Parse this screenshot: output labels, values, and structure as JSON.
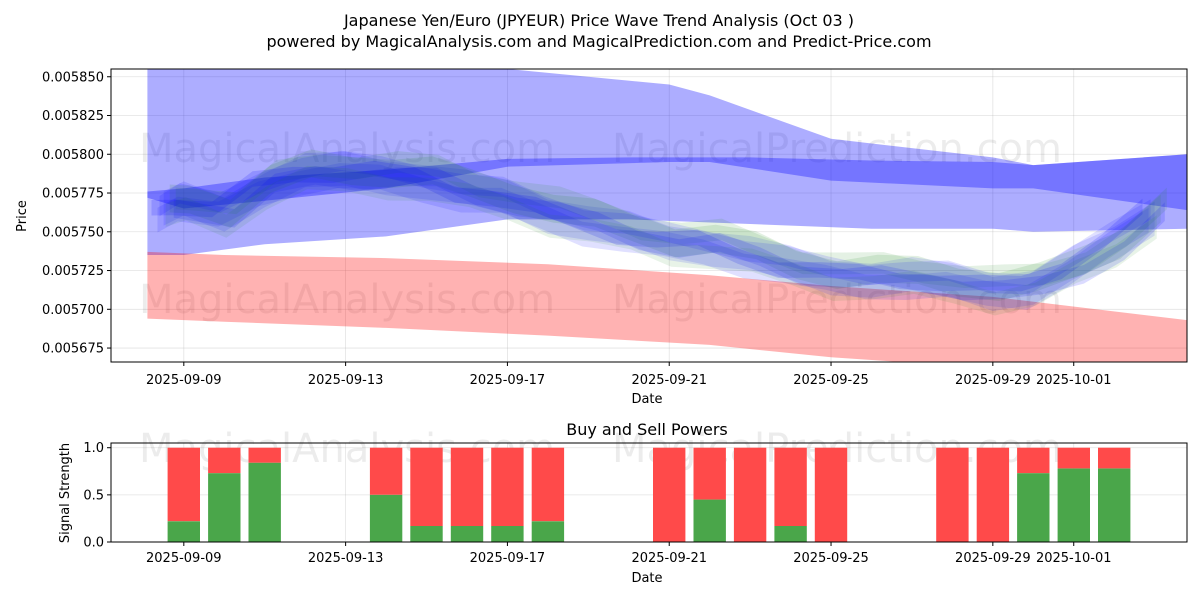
{
  "chart_data": [
    {
      "type": "area",
      "title": "Japanese Yen/Euro (JPYEUR) Price Wave Trend Analysis (Oct 03 )",
      "subtitle": "powered by MagicalAnalysis.com and MagicalPrediction.com and Predict-Price.com",
      "xlabel": "Date",
      "ylabel": "Price",
      "grid": true,
      "x_start": "2025-09-08",
      "x_range_days": [
        -0.8,
        25.8
      ],
      "ylim": [
        0.005666,
        0.005855
      ],
      "x_ticks": [
        {
          "label": "2025-09-09",
          "day": 1
        },
        {
          "label": "2025-09-13",
          "day": 5
        },
        {
          "label": "2025-09-17",
          "day": 9
        },
        {
          "label": "2025-09-21",
          "day": 13
        },
        {
          "label": "2025-09-25",
          "day": 17
        },
        {
          "label": "2025-09-29",
          "day": 21
        },
        {
          "label": "2025-10-01",
          "day": 23
        }
      ],
      "y_ticks": [
        {
          "label": "0.005675",
          "value": 0.005675
        },
        {
          "label": "0.005700",
          "value": 0.0057
        },
        {
          "label": "0.005725",
          "value": 0.005725
        },
        {
          "label": "0.005750",
          "value": 0.00575
        },
        {
          "label": "0.005775",
          "value": 0.005775
        },
        {
          "label": "0.005800",
          "value": 0.0058
        },
        {
          "label": "0.005825",
          "value": 0.005825
        },
        {
          "label": "0.005850",
          "value": 0.00585
        }
      ],
      "watermarks": [
        "MagicalAnalysis.com",
        "MagicalPrediction.com",
        "MagicalAnalysis.com",
        "MagicalPrediction.com"
      ],
      "bands": [
        {
          "name": "upper-blue-band",
          "color": "#0000ff",
          "opacity": 0.32,
          "x": [
            0.1,
            1.0,
            3.0,
            6.0,
            9.0,
            13.0,
            14.0,
            17.0,
            21.0,
            22.0,
            25.8
          ],
          "lower": [
            0.005772,
            0.005765,
            0.00577,
            0.005778,
            0.005792,
            0.005795,
            0.005795,
            0.005783,
            0.005778,
            0.005778,
            0.005764
          ],
          "upper": [
            0.005857,
            0.005857,
            0.005857,
            0.005857,
            0.005855,
            0.005845,
            0.005838,
            0.00581,
            0.005798,
            0.005793,
            0.0058
          ]
        },
        {
          "name": "mid-blue-band",
          "color": "#0000ff",
          "opacity": 0.32,
          "x": [
            0.1,
            1.0,
            3.0,
            6.0,
            9.0,
            12.0,
            15.0,
            18.0,
            21.0,
            22.0,
            25.8
          ],
          "lower": [
            0.005735,
            0.005735,
            0.005742,
            0.005747,
            0.005758,
            0.005758,
            0.005755,
            0.005752,
            0.005752,
            0.00575,
            0.005752
          ],
          "upper": [
            0.005776,
            0.005778,
            0.005785,
            0.00579,
            0.005797,
            0.005798,
            0.005798,
            0.005796,
            0.005795,
            0.005793,
            0.0058
          ]
        },
        {
          "name": "red-band",
          "color": "#ff0000",
          "opacity": 0.3,
          "x": [
            0.1,
            2.0,
            6.0,
            10.0,
            14.0,
            17.0,
            21.0,
            25.8
          ],
          "lower": [
            0.005694,
            0.005692,
            0.005688,
            0.005683,
            0.005677,
            0.005669,
            0.005662,
            0.00566
          ],
          "upper": [
            0.005737,
            0.005735,
            0.005733,
            0.005729,
            0.005722,
            0.005715,
            0.005708,
            0.005693
          ]
        }
      ],
      "wave_center": {
        "x": [
          0.5,
          1.0,
          2.0,
          3.0,
          4.0,
          5.0,
          6.0,
          7.0,
          8.0,
          9.0,
          10.0,
          11.0,
          12.0,
          13.0,
          14.0,
          15.0,
          16.0,
          17.0,
          18.0,
          19.0,
          20.0,
          21.0,
          22.0,
          23.0,
          24.0,
          25.0
        ],
        "y": [
          0.005765,
          0.005768,
          0.005762,
          0.00578,
          0.005788,
          0.005788,
          0.005787,
          0.005784,
          0.005776,
          0.005771,
          0.005763,
          0.005756,
          0.005749,
          0.005743,
          0.005742,
          0.005735,
          0.005727,
          0.005722,
          0.005721,
          0.00572,
          0.005717,
          0.005713,
          0.005715,
          0.005727,
          0.005742,
          0.005762
        ]
      },
      "wave_colors": [
        "#0000ff",
        "#228b22"
      ]
    },
    {
      "type": "bar",
      "title": "Buy and Sell Powers",
      "xlabel": "Date",
      "ylabel": "Signal Strength",
      "grid": true,
      "ylim": [
        0,
        1.05
      ],
      "x_range_days": [
        -0.8,
        25.8
      ],
      "y_ticks": [
        {
          "label": "0.0",
          "value": 0
        },
        {
          "label": "0.5",
          "value": 0.5
        },
        {
          "label": "1.0",
          "value": 1.0
        }
      ],
      "x_ticks": [
        {
          "label": "2025-09-09",
          "day": 1
        },
        {
          "label": "2025-09-13",
          "day": 5
        },
        {
          "label": "2025-09-17",
          "day": 9
        },
        {
          "label": "2025-09-21",
          "day": 13
        },
        {
          "label": "2025-09-25",
          "day": 17
        },
        {
          "label": "2025-09-29",
          "day": 21
        },
        {
          "label": "2025-10-01",
          "day": 23
        }
      ],
      "buy_color": "#4aa64a",
      "sell_color": "#ff4a4a",
      "days": [
        1,
        2,
        3,
        6,
        7,
        8,
        9,
        10,
        13,
        14,
        15,
        16,
        17,
        20,
        21,
        22,
        23,
        24
      ],
      "buy": [
        0.22,
        0.73,
        0.84,
        0.5,
        0.17,
        0.17,
        0.17,
        0.22,
        0.0,
        0.45,
        0.0,
        0.17,
        0.0,
        0.0,
        0.0,
        0.73,
        0.78,
        0.78
      ],
      "total": 1.0
    }
  ]
}
